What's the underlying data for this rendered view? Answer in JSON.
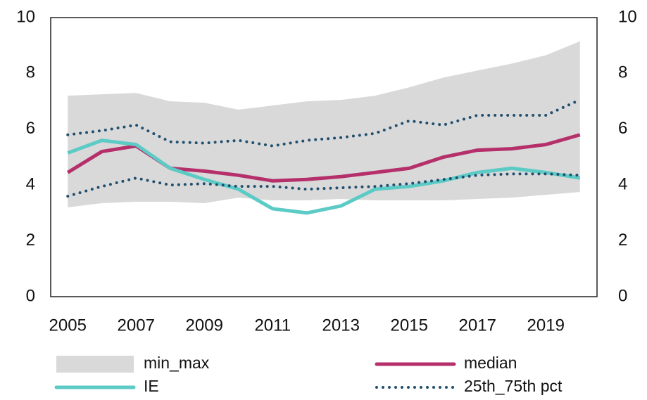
{
  "chart_data": {
    "type": "line",
    "x": [
      2005,
      2006,
      2007,
      2008,
      2009,
      2010,
      2011,
      2012,
      2013,
      2014,
      2015,
      2016,
      2017,
      2018,
      2019,
      2020
    ],
    "xlim": [
      2004.5,
      2020.5
    ],
    "xticks": [
      2005,
      2007,
      2009,
      2011,
      2013,
      2015,
      2017,
      2019
    ],
    "ylim": [
      0,
      10
    ],
    "yticks": [
      0,
      2,
      4,
      6,
      8,
      10
    ],
    "y2lim": [
      0,
      10
    ],
    "y2ticks": [
      0,
      2,
      4,
      6,
      8,
      10
    ],
    "series": [
      {
        "name": "min_max",
        "kind": "band",
        "color": "#d9d9d9",
        "lower": [
          3.2,
          3.35,
          3.4,
          3.4,
          3.35,
          3.55,
          3.45,
          3.45,
          3.5,
          3.45,
          3.45,
          3.45,
          3.5,
          3.55,
          3.65,
          3.75
        ],
        "upper": [
          7.2,
          7.25,
          7.3,
          7.0,
          6.95,
          6.7,
          6.85,
          7.0,
          7.05,
          7.2,
          7.5,
          7.85,
          8.1,
          8.35,
          8.65,
          9.15
        ]
      },
      {
        "name": "median",
        "kind": "line",
        "color": "#b5306b",
        "values": [
          4.45,
          5.2,
          5.4,
          4.6,
          4.5,
          4.35,
          4.15,
          4.2,
          4.3,
          4.45,
          4.6,
          5.0,
          5.25,
          5.3,
          5.45,
          5.8
        ]
      },
      {
        "name": "IE",
        "kind": "line",
        "color": "#5ccac5",
        "values": [
          5.15,
          5.6,
          5.45,
          4.6,
          4.2,
          3.85,
          3.15,
          3.0,
          3.25,
          3.85,
          3.95,
          4.15,
          4.45,
          4.6,
          4.45,
          4.25
        ]
      },
      {
        "name": "25th_75th pct",
        "kind": "dotted",
        "color": "#1f4e6e",
        "lower": [
          3.6,
          3.95,
          4.25,
          4.0,
          4.05,
          3.95,
          3.95,
          3.85,
          3.9,
          3.95,
          4.05,
          4.2,
          4.35,
          4.4,
          4.4,
          4.35
        ],
        "upper": [
          5.8,
          5.95,
          6.15,
          5.55,
          5.5,
          5.6,
          5.4,
          5.6,
          5.7,
          5.85,
          6.3,
          6.15,
          6.5,
          6.5,
          6.5,
          7.05
        ]
      }
    ]
  }
}
